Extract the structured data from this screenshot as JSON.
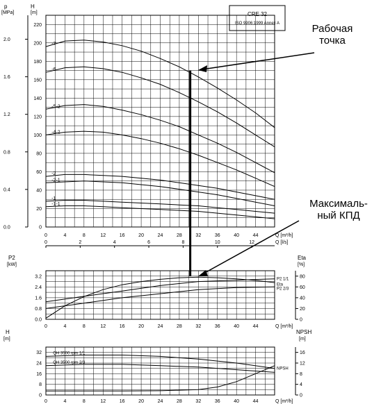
{
  "chart_data": [
    {
      "type": "line",
      "title": "CRE 32",
      "subtitle": "ISO 9906:1999 Annex A",
      "x_unit": "Q [m³/h]",
      "x_ticks": [
        0,
        4,
        8,
        12,
        16,
        20,
        24,
        28,
        32,
        36,
        40,
        44
      ],
      "x2_unit": "Q [l/s]",
      "x2_ticks": [
        0,
        2,
        4,
        6,
        8,
        10,
        12
      ],
      "y_left_label": "p",
      "y_left_unit": "[MPa]",
      "y_left_ticks": [
        "0.0",
        "0.4",
        "0.8",
        "1.2",
        "1.6",
        "2.0"
      ],
      "y_right_label": "H",
      "y_right_unit": "[m]",
      "y_right_ticks": [
        0,
        20,
        40,
        60,
        80,
        100,
        120,
        140,
        160,
        180,
        200,
        220
      ],
      "ylim": [
        0,
        230
      ],
      "xlim": [
        0,
        48
      ],
      "series": [
        {
          "name": "-7",
          "x": [
            0,
            4,
            8,
            12,
            16,
            20,
            24,
            28,
            32,
            36,
            40,
            44,
            48
          ],
          "values": [
            196,
            202,
            203,
            201,
            197,
            191,
            183,
            174,
            163,
            151,
            138,
            124,
            108
          ]
        },
        {
          "name": "-6",
          "x": [
            0,
            4,
            8,
            12,
            16,
            20,
            24,
            28,
            32,
            36,
            40,
            44,
            48
          ],
          "values": [
            168,
            173,
            174,
            172,
            168,
            162,
            155,
            146,
            136,
            125,
            113,
            100,
            87
          ]
        },
        {
          "name": "-5-2",
          "x": [
            0,
            4,
            8,
            12,
            16,
            20,
            24,
            28,
            32,
            36,
            40,
            44,
            48
          ],
          "values": [
            128,
            132,
            133,
            131,
            127,
            122,
            116,
            109,
            100,
            91,
            81,
            70,
            59
          ]
        },
        {
          "name": "-4-2",
          "x": [
            0,
            4,
            8,
            12,
            16,
            20,
            24,
            28,
            32,
            36,
            40,
            44,
            48
          ],
          "values": [
            100,
            103,
            104,
            103,
            100,
            96,
            91,
            85,
            78,
            70,
            62,
            53,
            44
          ]
        },
        {
          "name": "-2",
          "x": [
            0,
            4,
            8,
            12,
            16,
            20,
            24,
            28,
            32,
            36,
            40,
            44,
            48
          ],
          "values": [
            55,
            57,
            57,
            56,
            55,
            53,
            51,
            48,
            45,
            42,
            38,
            34,
            30
          ]
        },
        {
          "name": "-2-1",
          "x": [
            0,
            4,
            8,
            12,
            16,
            20,
            24,
            28,
            32,
            36,
            40,
            44,
            48
          ],
          "values": [
            48,
            49,
            50,
            49,
            48,
            46,
            44,
            41,
            38,
            35,
            31,
            27,
            23
          ]
        },
        {
          "name": "-1",
          "x": [
            0,
            4,
            8,
            12,
            16,
            20,
            24,
            28,
            32,
            36,
            40,
            44,
            48
          ],
          "values": [
            28,
            29,
            29,
            28,
            27,
            26,
            25,
            24,
            23,
            21,
            19,
            17,
            15
          ]
        },
        {
          "name": "-1-1",
          "x": [
            0,
            4,
            8,
            12,
            16,
            20,
            24,
            28,
            32,
            36,
            40,
            44,
            48
          ],
          "values": [
            22,
            23,
            23,
            22,
            21,
            20,
            19,
            18,
            17,
            15,
            13,
            11,
            9
          ]
        }
      ],
      "operating_point": {
        "x": 30,
        "y": 170
      },
      "annotation": "Рабочая\nточка"
    },
    {
      "type": "line",
      "x_unit": "Q [m³/h]",
      "x_ticks": [
        0,
        4,
        8,
        12,
        16,
        20,
        24,
        28,
        32,
        36,
        40,
        44
      ],
      "y_left_label": "P2",
      "y_left_unit": "[kW]",
      "y_left_ticks": [
        "0.0",
        "0.8",
        "1.6",
        "2.4",
        "3.2"
      ],
      "y_right_label": "Eta",
      "y_right_unit": "[%]",
      "y_right_ticks": [
        0,
        20,
        40,
        60,
        80
      ],
      "series": [
        {
          "name": "P2 1/1",
          "x": [
            0,
            8,
            16,
            24,
            32,
            40,
            48
          ],
          "values": [
            1.3,
            1.7,
            2.1,
            2.5,
            2.8,
            2.9,
            3.0
          ]
        },
        {
          "name": "Eta",
          "x": [
            0,
            4,
            8,
            12,
            16,
            20,
            24,
            28,
            32,
            36,
            40,
            44,
            48
          ],
          "values": [
            2,
            25,
            42,
            55,
            64,
            70,
            74,
            77,
            78,
            77,
            75,
            72,
            68
          ]
        },
        {
          "name": "P2 2/3",
          "x": [
            0,
            8,
            16,
            24,
            32,
            40,
            48
          ],
          "values": [
            0.8,
            1.2,
            1.6,
            1.9,
            2.2,
            2.35,
            2.4
          ]
        }
      ],
      "annotation": "Максималь-\nный КПД"
    },
    {
      "type": "line",
      "x_unit": "Q [m³/h]",
      "x_ticks": [
        0,
        4,
        8,
        12,
        16,
        20,
        24,
        28,
        32,
        36,
        40,
        44
      ],
      "y_left_label": "H",
      "y_left_unit": "[m]",
      "y_left_ticks": [
        0,
        8,
        16,
        24,
        32
      ],
      "y_right_label": "NPSH",
      "y_right_unit": "[m]",
      "y_right_ticks": [
        0,
        4,
        8,
        12,
        16
      ],
      "series": [
        {
          "name": "QH 3500 rpm 1/1",
          "x": [
            0,
            8,
            16,
            24,
            32,
            40,
            48
          ],
          "values": [
            29,
            30,
            30,
            29,
            27,
            24,
            20
          ]
        },
        {
          "name": "QH 3500 rpm 2/3",
          "x": [
            0,
            8,
            16,
            24,
            32,
            40,
            48
          ],
          "values": [
            22,
            23,
            23,
            22,
            21,
            19,
            17
          ]
        },
        {
          "name": "NPSH",
          "x": [
            0,
            8,
            16,
            24,
            32,
            36,
            40,
            44,
            48
          ],
          "values": [
            1.5,
            1.5,
            1.5,
            1.6,
            2,
            3,
            5,
            8,
            11
          ]
        }
      ]
    }
  ]
}
